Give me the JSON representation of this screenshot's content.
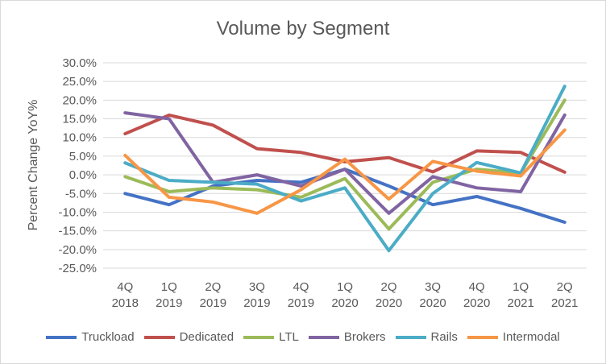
{
  "chart_data": {
    "type": "line",
    "title": "Volume by Segment",
    "xlabel": "",
    "ylabel": "Percent Change YoY%",
    "ylim": [
      -25,
      30
    ],
    "yticks": [
      "30.0%",
      "25.0%",
      "20.0%",
      "15.0%",
      "10.0%",
      "5.0%",
      "0.0%",
      "-5.0%",
      "-10.0%",
      "-15.0%",
      "-20.0%",
      "-25.0%"
    ],
    "grid": true,
    "legend": "bottom",
    "categories": [
      [
        "4Q",
        "2018"
      ],
      [
        "1Q",
        "2019"
      ],
      [
        "2Q",
        "2019"
      ],
      [
        "3Q",
        "2019"
      ],
      [
        "4Q",
        "2019"
      ],
      [
        "1Q",
        "2020"
      ],
      [
        "2Q",
        "2020"
      ],
      [
        "3Q",
        "2020"
      ],
      [
        "4Q",
        "2020"
      ],
      [
        "1Q",
        "2021"
      ],
      [
        "2Q",
        "2021"
      ]
    ],
    "series": [
      {
        "name": "Truckload",
        "color": "#4472c4",
        "values": [
          -5.0,
          -8.0,
          -3.0,
          -1.5,
          -2.0,
          1.5,
          -3.0,
          -8.0,
          -5.8,
          -9.0,
          -12.7
        ]
      },
      {
        "name": "Dedicated",
        "color": "#c0504d",
        "values": [
          11.0,
          16.0,
          13.3,
          7.0,
          6.0,
          3.5,
          4.6,
          0.8,
          6.4,
          6.0,
          0.7
        ]
      },
      {
        "name": "LTL",
        "color": "#9bbb59",
        "values": [
          -0.5,
          -4.5,
          -3.5,
          -4.0,
          -6.0,
          -1.0,
          -14.5,
          -2.0,
          1.5,
          0.5,
          20.0
        ]
      },
      {
        "name": "Brokers",
        "color": "#8064a2",
        "values": [
          16.6,
          15.0,
          -2.0,
          0.0,
          -3.0,
          1.5,
          -10.3,
          -0.5,
          -3.5,
          -4.5,
          16.0
        ]
      },
      {
        "name": "Rails",
        "color": "#4bacc6",
        "values": [
          3.2,
          -1.5,
          -2.0,
          -2.5,
          -7.0,
          -3.5,
          -20.3,
          -5.0,
          3.3,
          0.5,
          23.7
        ]
      },
      {
        "name": "Intermodal",
        "color": "#f79646",
        "values": [
          5.2,
          -6.0,
          -7.3,
          -10.3,
          -4.0,
          4.2,
          -6.5,
          3.6,
          1.0,
          -0.3,
          12.0
        ]
      }
    ]
  }
}
